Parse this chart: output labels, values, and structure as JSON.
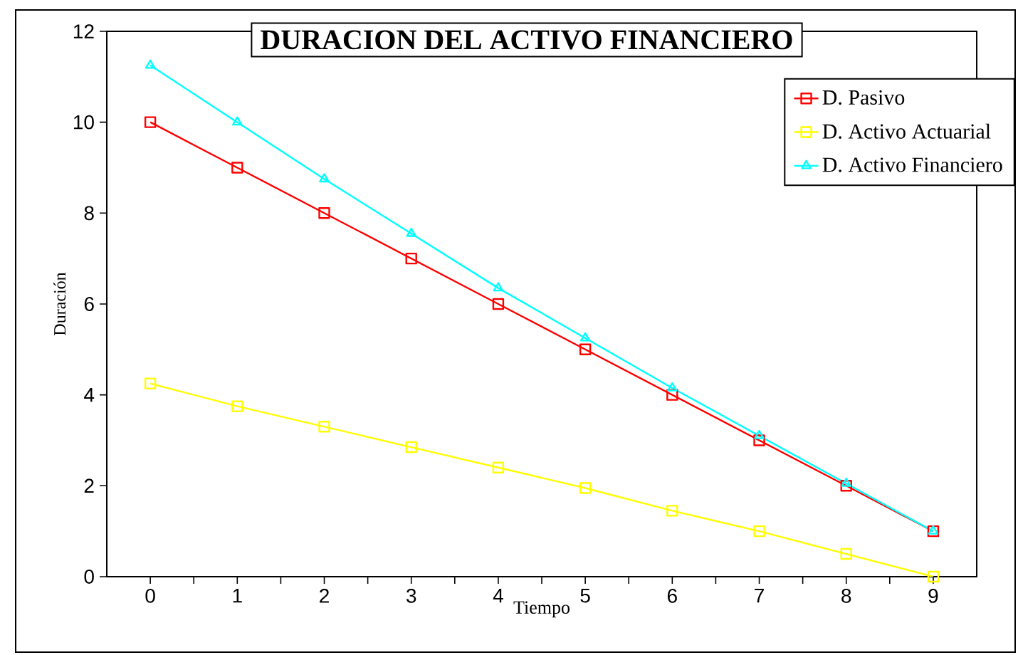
{
  "chart_data": {
    "type": "line",
    "title": "DURACION DEL ACTIVO FINANCIERO",
    "xlabel": "Tiempo",
    "ylabel": "Duración",
    "categories": [
      "0",
      "1",
      "2",
      "3",
      "4",
      "5",
      "6",
      "7",
      "8",
      "9"
    ],
    "series": [
      {
        "name": "D. Pasivo",
        "color": "#ff0000",
        "marker": "square",
        "values": [
          10,
          9,
          8,
          7,
          6,
          5,
          4,
          3,
          2,
          1
        ]
      },
      {
        "name": "D. Activo Actuarial",
        "color": "#ffff00",
        "marker": "square",
        "values": [
          4.25,
          3.75,
          3.3,
          2.85,
          2.4,
          1.95,
          1.45,
          1.0,
          0.5,
          0
        ]
      },
      {
        "name": "D. Activo Financiero",
        "color": "#00ffff",
        "marker": "triangle",
        "values": [
          11.25,
          10,
          8.75,
          7.55,
          6.35,
          5.25,
          4.15,
          3.1,
          2.05,
          1.0
        ]
      }
    ],
    "ylim": [
      0,
      12
    ],
    "yticks": [
      0,
      2,
      4,
      6,
      8,
      10,
      12
    ],
    "grid": false,
    "legend": "top right",
    "line_style": "solid"
  }
}
